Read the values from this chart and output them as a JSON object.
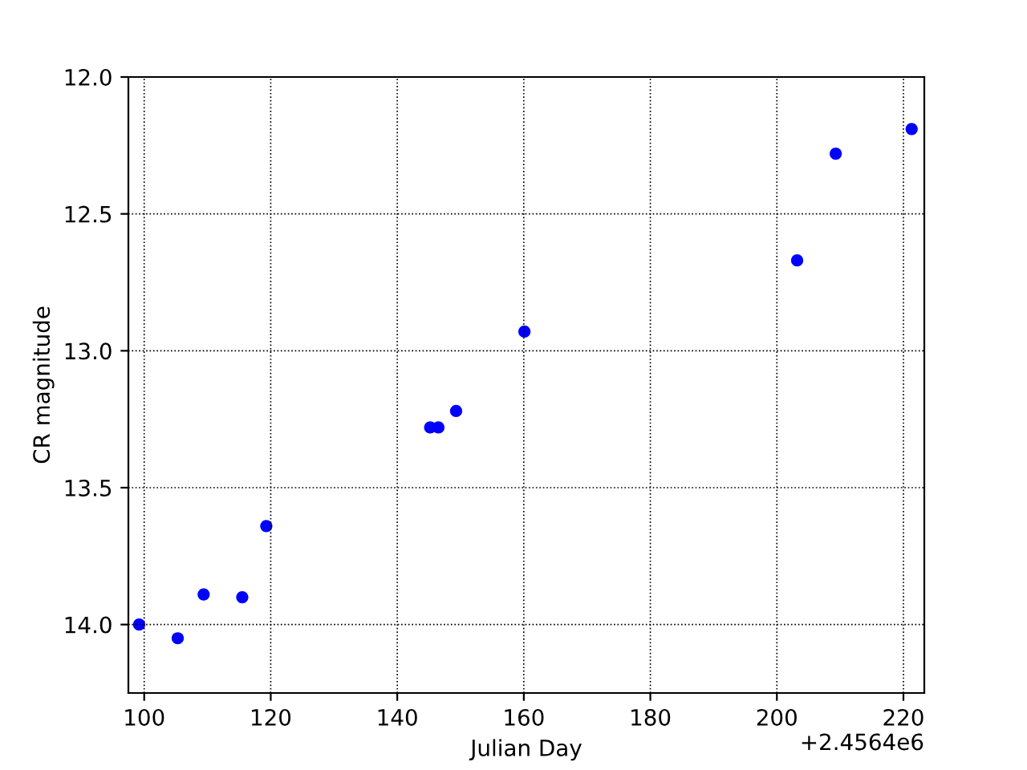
{
  "chart_data": {
    "type": "scatter",
    "xlabel": "Julian Day",
    "ylabel": "CR magnitude",
    "x": [
      99.2,
      105.3,
      109.4,
      115.5,
      119.3,
      145.2,
      146.5,
      149.3,
      160.1,
      203.2,
      209.3,
      221.3
    ],
    "series": [
      {
        "color": "#0000ff",
        "values": [
          14.0,
          14.05,
          13.89,
          13.9,
          13.64,
          13.28,
          13.28,
          13.22,
          12.93,
          12.67,
          12.28,
          12.19
        ]
      }
    ],
    "xlim": [
      97.5,
      223.3
    ],
    "xticks": [
      100,
      120,
      140,
      160,
      180,
      200,
      220
    ],
    "ylim": [
      14.25,
      12.0
    ],
    "yticks": [
      {
        "value": 12.0,
        "label": "12.0"
      },
      {
        "value": 12.5,
        "label": "12.5"
      },
      {
        "value": 13.0,
        "label": "13.0"
      },
      {
        "value": 13.5,
        "label": "13.5"
      },
      {
        "value": 14.0,
        "label": "14.0"
      }
    ],
    "annotations": [
      "+2.4564e6"
    ],
    "grid": true,
    "marker": "circle"
  }
}
